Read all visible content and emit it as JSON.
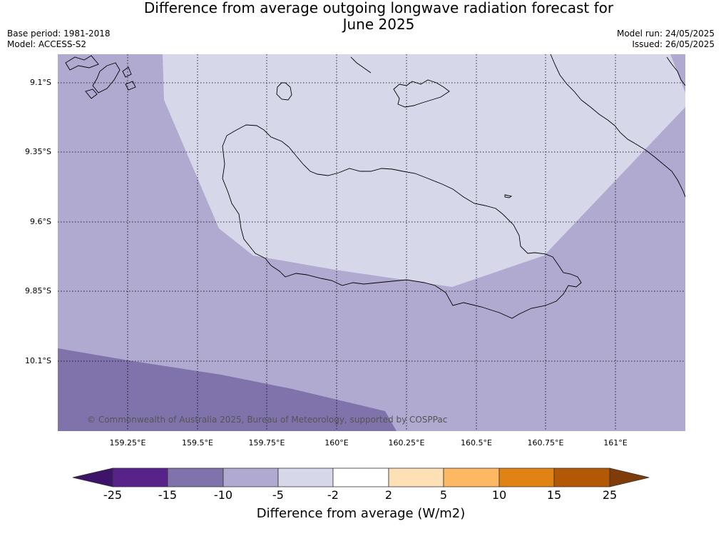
{
  "header": {
    "title_line1": "Difference from average outgoing longwave radiation forecast for",
    "title_line2": "June 2025",
    "base_period": "Base period: 1981-2018",
    "model": "Model: ACCESS-S2",
    "model_run": "Model run: 24/05/2025",
    "issued": "Issued: 26/05/2025"
  },
  "map": {
    "lat_labels": [
      "9.1°S",
      "9.35°S",
      "9.6°S",
      "9.85°S",
      "10.1°S"
    ],
    "lon_labels": [
      "159.25°E",
      "159.5°E",
      "159.75°E",
      "160°E",
      "160.25°E",
      "160.5°E",
      "160.75°E",
      "161°E"
    ],
    "copyright": "© Commonwealth of Australia 2025, Bureau of Meteorology, supported by COSPPac",
    "colors": {
      "light_purple": "#d7d7ea",
      "mid_purple": "#b0aad0",
      "dark_purple": "#8073ab",
      "coast": "#000000",
      "grid": "#000000"
    }
  },
  "colorbar": {
    "labels": [
      "-25",
      "-15",
      "-10",
      "-5",
      "-2",
      "2",
      "5",
      "10",
      "15",
      "25"
    ],
    "colors": [
      "#3d1469",
      "#57238b",
      "#8073ab",
      "#b0aad0",
      "#d7d7ea",
      "#ffffff",
      "#fee0b6",
      "#fdb863",
      "#e08214",
      "#b35806",
      "#7f3b08"
    ],
    "title": "Difference from average (W/m2)"
  }
}
